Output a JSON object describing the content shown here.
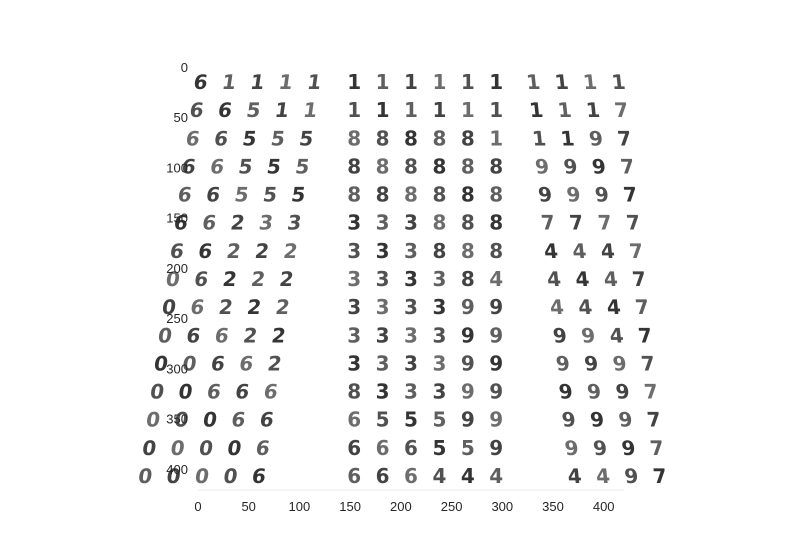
{
  "chart_data": {
    "type": "heatmap",
    "title": "",
    "xlabel": "",
    "ylabel": "",
    "xlim": [
      0,
      420
    ],
    "ylim": [
      420,
      0
    ],
    "x_ticks": [
      "0",
      "50",
      "100",
      "150",
      "200",
      "250",
      "300",
      "350",
      "400"
    ],
    "y_ticks": [
      "0",
      "50",
      "100",
      "150",
      "200",
      "250",
      "300",
      "350",
      "400"
    ],
    "grid": false,
    "n_rows": 15,
    "n_cols": 15,
    "digits": [
      [
        "6",
        "1",
        "1",
        "1",
        "1",
        "1",
        "1",
        "1",
        "1",
        "1",
        "1",
        "1",
        "1",
        "1",
        "1"
      ],
      [
        "6",
        "6",
        "5",
        "1",
        "1",
        "1",
        "1",
        "1",
        "1",
        "1",
        "1",
        "1",
        "1",
        "1",
        "7"
      ],
      [
        "6",
        "6",
        "5",
        "5",
        "5",
        "8",
        "8",
        "8",
        "8",
        "8",
        "1",
        "1",
        "1",
        "9",
        "7"
      ],
      [
        "6",
        "6",
        "5",
        "5",
        "5",
        "8",
        "8",
        "8",
        "8",
        "8",
        "8",
        "9",
        "9",
        "9",
        "7"
      ],
      [
        "6",
        "6",
        "5",
        "5",
        "5",
        "8",
        "8",
        "8",
        "8",
        "8",
        "8",
        "9",
        "9",
        "9",
        "7"
      ],
      [
        "6",
        "6",
        "2",
        "3",
        "3",
        "3",
        "3",
        "3",
        "8",
        "8",
        "8",
        "7",
        "7",
        "7",
        "7"
      ],
      [
        "6",
        "6",
        "2",
        "2",
        "2",
        "3",
        "3",
        "3",
        "8",
        "8",
        "8",
        "4",
        "4",
        "4",
        "7"
      ],
      [
        "0",
        "6",
        "2",
        "2",
        "2",
        "3",
        "3",
        "3",
        "3",
        "8",
        "4",
        "4",
        "4",
        "4",
        "7"
      ],
      [
        "0",
        "6",
        "2",
        "2",
        "2",
        "3",
        "3",
        "3",
        "3",
        "9",
        "9",
        "4",
        "4",
        "4",
        "7"
      ],
      [
        "0",
        "6",
        "6",
        "2",
        "2",
        "3",
        "3",
        "3",
        "3",
        "9",
        "9",
        "9",
        "9",
        "4",
        "7"
      ],
      [
        "0",
        "0",
        "6",
        "6",
        "2",
        "3",
        "3",
        "3",
        "3",
        "9",
        "9",
        "9",
        "9",
        "9",
        "7"
      ],
      [
        "0",
        "0",
        "6",
        "6",
        "6",
        "8",
        "3",
        "3",
        "3",
        "9",
        "9",
        "9",
        "9",
        "9",
        "7"
      ],
      [
        "0",
        "0",
        "0",
        "6",
        "6",
        "6",
        "5",
        "5",
        "5",
        "9",
        "9",
        "9",
        "9",
        "9",
        "7"
      ],
      [
        "0",
        "0",
        "0",
        "0",
        "6",
        "6",
        "6",
        "6",
        "5",
        "5",
        "9",
        "9",
        "9",
        "9",
        "7"
      ],
      [
        "0",
        "0",
        "0",
        "0",
        "6",
        "6",
        "6",
        "6",
        "4",
        "4",
        "4",
        "4",
        "4",
        "9",
        "7"
      ]
    ]
  }
}
